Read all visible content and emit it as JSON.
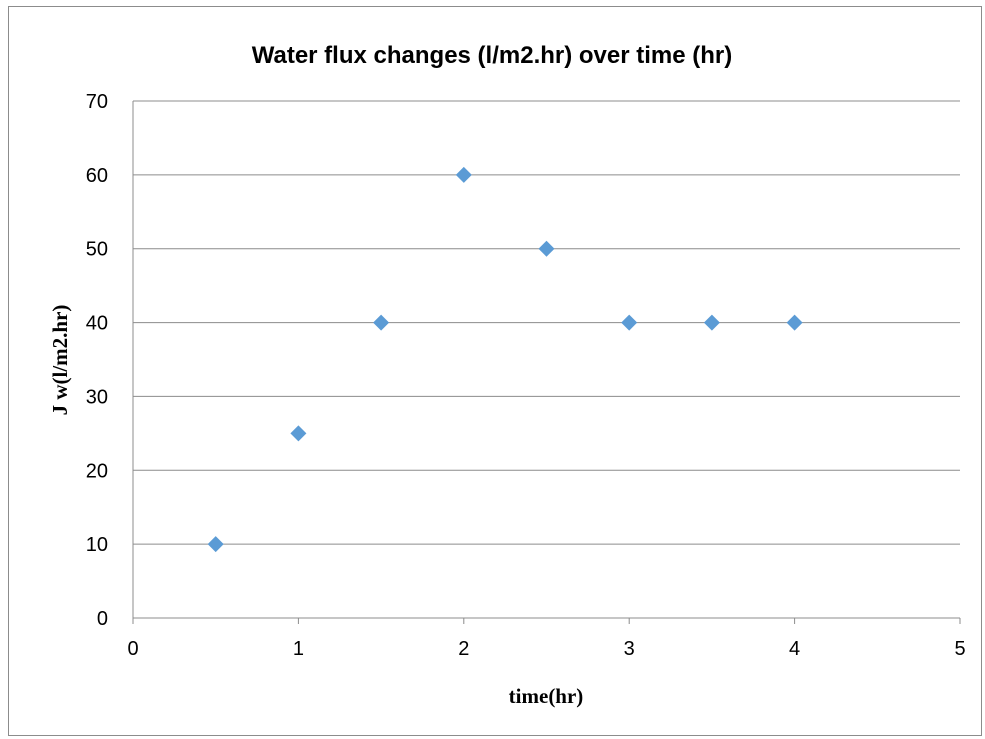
{
  "chart_data": {
    "type": "scatter",
    "title": "Water flux changes (l/m2.hr) over time (hr)",
    "xlabel": "time(hr)",
    "ylabel": "J w(l/m2.hr)",
    "xlim": [
      0,
      5
    ],
    "ylim": [
      0,
      70
    ],
    "x_ticks": [
      0,
      1,
      2,
      3,
      4,
      5
    ],
    "y_ticks": [
      0,
      10,
      20,
      30,
      40,
      50,
      60,
      70
    ],
    "grid": {
      "horizontal": true,
      "vertical": false
    },
    "legend": "none",
    "marker": "diamond",
    "color": "#5b9bd5",
    "series": [
      {
        "x": [
          0.5,
          1.0,
          1.5,
          2.0,
          2.5,
          3.0,
          3.5,
          4.0
        ],
        "y": [
          10,
          25,
          40,
          60,
          50,
          40,
          40,
          40
        ]
      }
    ]
  }
}
